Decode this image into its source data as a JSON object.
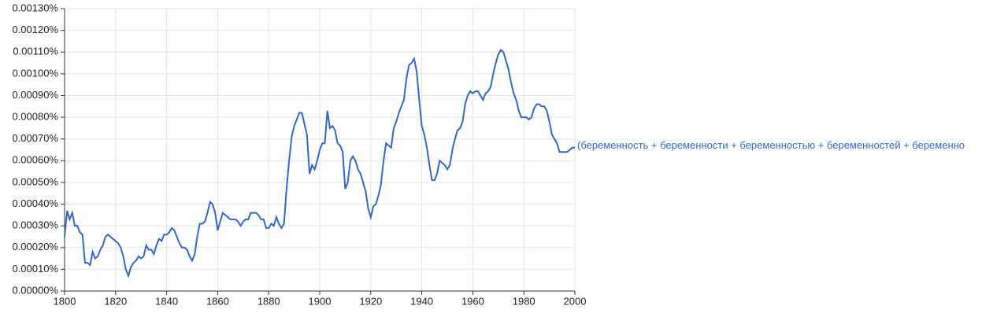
{
  "chart_data": {
    "type": "line",
    "x": [
      1800,
      1801,
      1802,
      1803,
      1804,
      1805,
      1806,
      1807,
      1808,
      1809,
      1810,
      1811,
      1812,
      1813,
      1814,
      1815,
      1816,
      1817,
      1818,
      1819,
      1820,
      1821,
      1822,
      1823,
      1824,
      1825,
      1826,
      1827,
      1828,
      1829,
      1830,
      1831,
      1832,
      1833,
      1834,
      1835,
      1836,
      1837,
      1838,
      1839,
      1840,
      1841,
      1842,
      1843,
      1844,
      1845,
      1846,
      1847,
      1848,
      1849,
      1850,
      1851,
      1852,
      1853,
      1854,
      1855,
      1856,
      1857,
      1858,
      1859,
      1860,
      1861,
      1862,
      1863,
      1864,
      1865,
      1866,
      1867,
      1868,
      1869,
      1870,
      1871,
      1872,
      1873,
      1874,
      1875,
      1876,
      1877,
      1878,
      1879,
      1880,
      1881,
      1882,
      1883,
      1884,
      1885,
      1886,
      1887,
      1888,
      1889,
      1890,
      1891,
      1892,
      1893,
      1894,
      1895,
      1896,
      1897,
      1898,
      1899,
      1900,
      1901,
      1902,
      1903,
      1904,
      1905,
      1906,
      1907,
      1908,
      1909,
      1910,
      1911,
      1912,
      1913,
      1914,
      1915,
      1916,
      1917,
      1918,
      1919,
      1920,
      1921,
      1922,
      1923,
      1924,
      1925,
      1926,
      1927,
      1928,
      1929,
      1930,
      1931,
      1932,
      1933,
      1934,
      1935,
      1936,
      1937,
      1938,
      1939,
      1940,
      1941,
      1942,
      1943,
      1944,
      1945,
      1946,
      1947,
      1948,
      1949,
      1950,
      1951,
      1952,
      1953,
      1954,
      1955,
      1956,
      1957,
      1958,
      1959,
      1960,
      1961,
      1962,
      1963,
      1964,
      1965,
      1966,
      1967,
      1968,
      1969,
      1970,
      1971,
      1972,
      1973,
      1974,
      1975,
      1976,
      1977,
      1978,
      1979,
      1980,
      1981,
      1982,
      1983,
      1984,
      1985,
      1986,
      1987,
      1988,
      1989,
      1990,
      1991,
      1992,
      1993,
      1994,
      1995,
      1996,
      1997,
      1998,
      1999,
      2000
    ],
    "series": [
      {
        "name": "(беременность + беременности + беременностью + беременностей + беременно",
        "color": "#3366cc",
        "values": [
          0.00025,
          0.00037,
          0.00033,
          0.00036,
          0.0003,
          0.0003,
          0.00027,
          0.00026,
          0.00013,
          0.00013,
          0.00012,
          0.00018,
          0.00015,
          0.00016,
          0.00019,
          0.00021,
          0.00025,
          0.00026,
          0.00025,
          0.00024,
          0.00023,
          0.00022,
          0.0002,
          0.00016,
          0.0001,
          7e-05,
          0.00011,
          0.00013,
          0.00014,
          0.00016,
          0.00015,
          0.00016,
          0.00021,
          0.00019,
          0.00019,
          0.00017,
          0.00021,
          0.00024,
          0.00023,
          0.00026,
          0.00026,
          0.00027,
          0.00029,
          0.00028,
          0.00025,
          0.00022,
          0.0002,
          0.0002,
          0.00019,
          0.00016,
          0.00014,
          0.00017,
          0.00025,
          0.00031,
          0.00031,
          0.00032,
          0.00036,
          0.00041,
          0.0004,
          0.00036,
          0.00028,
          0.00032,
          0.00036,
          0.00035,
          0.00034,
          0.00033,
          0.00033,
          0.00033,
          0.00032,
          0.0003,
          0.00032,
          0.00033,
          0.00033,
          0.00036,
          0.00036,
          0.00036,
          0.00035,
          0.00033,
          0.00033,
          0.00029,
          0.00029,
          0.00031,
          0.0003,
          0.00034,
          0.00031,
          0.00029,
          0.00031,
          0.00047,
          0.0006,
          0.00071,
          0.00076,
          0.00079,
          0.00082,
          0.00082,
          0.00077,
          0.00072,
          0.00054,
          0.00058,
          0.00056,
          0.0006,
          0.00065,
          0.00068,
          0.00068,
          0.00083,
          0.00075,
          0.00076,
          0.00074,
          0.00068,
          0.00067,
          0.00064,
          0.00047,
          0.0005,
          0.0006,
          0.00062,
          0.0006,
          0.00056,
          0.00054,
          0.0005,
          0.00046,
          0.00038,
          0.00034,
          0.00039,
          0.0004,
          0.00044,
          0.00049,
          0.0006,
          0.00068,
          0.00067,
          0.00066,
          0.00075,
          0.00078,
          0.00082,
          0.00085,
          0.00088,
          0.00098,
          0.00104,
          0.00105,
          0.00107,
          0.00101,
          0.00088,
          0.00076,
          0.00072,
          0.00066,
          0.00058,
          0.00051,
          0.00051,
          0.00054,
          0.0006,
          0.00059,
          0.00058,
          0.00056,
          0.00058,
          0.00065,
          0.0007,
          0.00074,
          0.00075,
          0.00078,
          0.00086,
          0.0009,
          0.00092,
          0.00091,
          0.00092,
          0.00092,
          0.0009,
          0.00088,
          0.00091,
          0.00092,
          0.00094,
          0.001,
          0.00105,
          0.00109,
          0.00111,
          0.0011,
          0.00106,
          0.00102,
          0.00096,
          0.00091,
          0.00088,
          0.00083,
          0.0008,
          0.0008,
          0.0008,
          0.00079,
          0.0008,
          0.00084,
          0.00086,
          0.00086,
          0.00085,
          0.00085,
          0.00083,
          0.00078,
          0.00072,
          0.0007,
          0.00068,
          0.00064,
          0.00064,
          0.00064,
          0.00064,
          0.00065,
          0.00066,
          0.00066
        ]
      }
    ],
    "xlim": [
      1800,
      2000
    ],
    "xticks": [
      1800,
      1820,
      1840,
      1860,
      1880,
      1900,
      1920,
      1940,
      1960,
      1980,
      2000
    ],
    "ylim": [
      0,
      0.0013
    ],
    "yticks": [
      {
        "value": 0,
        "label": "0.00000%"
      },
      {
        "value": 0.0001,
        "label": "0.00010%"
      },
      {
        "value": 0.0002,
        "label": "0.00020%"
      },
      {
        "value": 0.0003,
        "label": "0.00030%"
      },
      {
        "value": 0.0004,
        "label": "0.00040%"
      },
      {
        "value": 0.0005,
        "label": "0.00050%"
      },
      {
        "value": 0.0006,
        "label": "0.00060%"
      },
      {
        "value": 0.0007,
        "label": "0.00070%"
      },
      {
        "value": 0.0008,
        "label": "0.00080%"
      },
      {
        "value": 0.0009,
        "label": "0.00090%"
      },
      {
        "value": 0.001,
        "label": "0.00100%"
      },
      {
        "value": 0.0011,
        "label": "0.00110%"
      },
      {
        "value": 0.0012,
        "label": "0.00120%"
      },
      {
        "value": 0.0013,
        "label": "0.00130%"
      }
    ],
    "grid": true
  }
}
